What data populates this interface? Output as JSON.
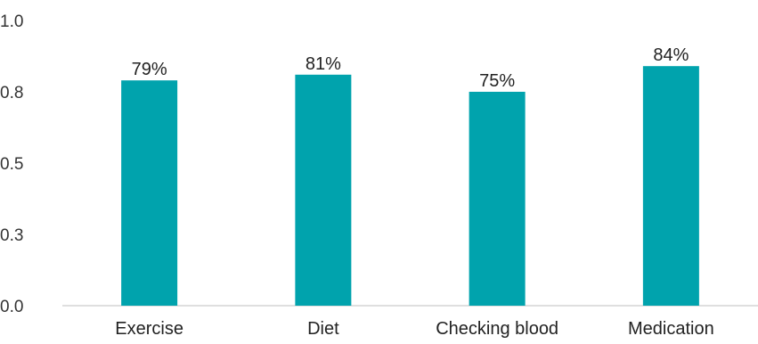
{
  "chart_data": {
    "type": "bar",
    "categories": [
      "Exercise",
      "Diet",
      "Checking blood",
      "Medication"
    ],
    "values": [
      0.79,
      0.81,
      0.75,
      0.84
    ],
    "data_labels": [
      "79%",
      "81%",
      "75%",
      "84%"
    ],
    "y_tick_labels": [
      "0.0",
      "0.3",
      "0.5",
      "0.8",
      "1.0"
    ],
    "ylim": [
      0,
      1.0
    ],
    "title": "",
    "xlabel": "",
    "ylabel": "",
    "grid": false,
    "legend": "none",
    "bar_color": "#00A3AD",
    "axis_color": "#BFBFBF"
  }
}
